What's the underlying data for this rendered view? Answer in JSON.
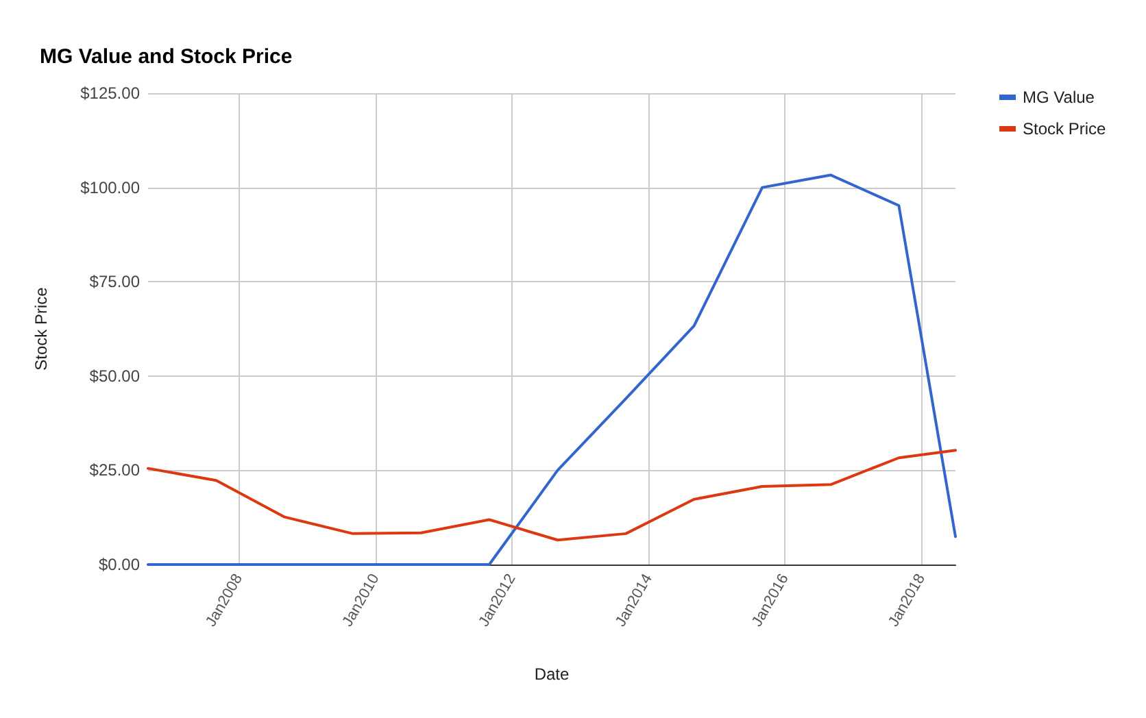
{
  "chart_data": {
    "type": "line",
    "title": "MG Value and Stock Price",
    "xlabel": "Date",
    "ylabel": "Stock Price",
    "x": [
      "2006-09",
      "2007-09",
      "2008-09",
      "2009-09",
      "2010-09",
      "2011-09",
      "2012-09",
      "2013-09",
      "2014-09",
      "2015-09",
      "2016-09",
      "2017-09",
      "2018-07"
    ],
    "series": [
      {
        "name": "MG Value",
        "color": "#3366cc",
        "values": [
          0,
          0,
          0,
          0,
          0,
          0,
          25,
          44,
          63.3,
          100,
          103.3,
          95.2,
          7.4
        ]
      },
      {
        "name": "Stock Price",
        "color": "#dc3912",
        "values": [
          25.5,
          22.3,
          12.6,
          8.2,
          8.4,
          11.9,
          6.5,
          8.2,
          17.3,
          20.7,
          21.2,
          28.3,
          30.3
        ]
      }
    ],
    "xlim": [
      "2006-09",
      "2018-07"
    ],
    "xticks": [
      {
        "value": "2008-01",
        "label": "Jan2008"
      },
      {
        "value": "2010-01",
        "label": "Jan2010"
      },
      {
        "value": "2012-01",
        "label": "Jan2012"
      },
      {
        "value": "2014-01",
        "label": "Jan2014"
      },
      {
        "value": "2016-01",
        "label": "Jan2016"
      },
      {
        "value": "2018-01",
        "label": "Jan2018"
      }
    ],
    "ylim": [
      0,
      125
    ],
    "yticks": [
      {
        "value": 0,
        "label": "$0.00"
      },
      {
        "value": 25,
        "label": "$25.00"
      },
      {
        "value": 50,
        "label": "$50.00"
      },
      {
        "value": 75,
        "label": "$75.00"
      },
      {
        "value": 100,
        "label": "$100.00"
      },
      {
        "value": 125,
        "label": "$125.00"
      }
    ],
    "grid": true,
    "legend": "top right",
    "marker": "none",
    "line_style": "solid"
  }
}
